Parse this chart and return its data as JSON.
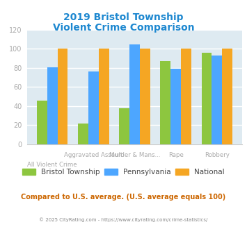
{
  "title_line1": "2019 Bristol Township",
  "title_line2": "Violent Crime Comparison",
  "bristol": [
    46,
    22,
    38,
    87,
    96
  ],
  "pennsylvania": [
    81,
    76,
    105,
    79,
    93
  ],
  "national": [
    100,
    100,
    100,
    100,
    100
  ],
  "x_top_labels": [
    "",
    "Aggravated Assault",
    "Murder & Mans...",
    "Rape",
    "Robbery"
  ],
  "x_bot_labels": [
    "All Violent Crime",
    "",
    "",
    "",
    ""
  ],
  "bar_colors": {
    "bristol": "#8dc63f",
    "pennsylvania": "#4da6ff",
    "national": "#f5a623"
  },
  "ylim": [
    0,
    120
  ],
  "yticks": [
    0,
    20,
    40,
    60,
    80,
    100,
    120
  ],
  "bg_color": "#deeaf1",
  "title_color": "#1e88d0",
  "axis_label_color": "#aaaaaa",
  "legend_label_color": "#444444",
  "note_text": "Compared to U.S. average. (U.S. average equals 100)",
  "note_color": "#cc6600",
  "footer_text": "© 2025 CityRating.com - https://www.cityrating.com/crime-statistics/",
  "footer_color": "#888888",
  "grid_color": "#ffffff"
}
